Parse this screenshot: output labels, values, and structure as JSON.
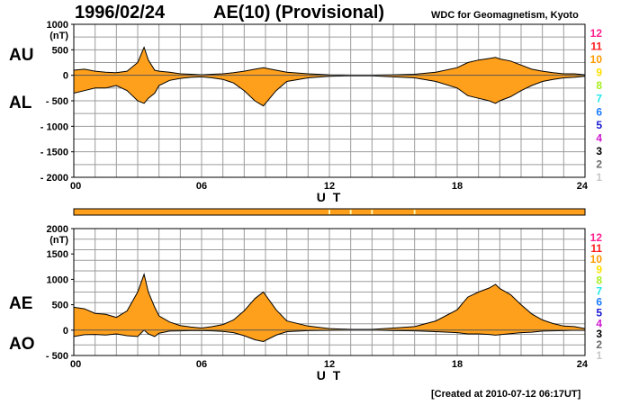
{
  "header": {
    "date": "1996/02/24",
    "title": "AE(10) (Provisional)",
    "source": "WDC for Geomagnetism, Kyoto"
  },
  "footer": {
    "created": "[Created at 2010-07-12 06:17UT]"
  },
  "colors": {
    "fill": "#ffa01c",
    "grid": "#9c9c9c",
    "flag_bar": "#ffa01c",
    "flag_marks": "#fff4b0"
  },
  "station_legend": [
    {
      "label": "12",
      "color": "#ff1f8f"
    },
    {
      "label": "11",
      "color": "#ff1c1c"
    },
    {
      "label": "10",
      "color": "#ff9a00"
    },
    {
      "label": "9",
      "color": "#ffe000"
    },
    {
      "label": "8",
      "color": "#a8ee22"
    },
    {
      "label": "7",
      "color": "#22e6e6"
    },
    {
      "label": "6",
      "color": "#1e7cff"
    },
    {
      "label": "5",
      "color": "#1a1ad0"
    },
    {
      "label": "4",
      "color": "#d01ad0"
    },
    {
      "label": "3",
      "color": "#000000"
    },
    {
      "label": "2",
      "color": "#6a6a6a"
    },
    {
      "label": "1",
      "color": "#c8c8c8"
    }
  ],
  "flag_marks_hours": [
    12,
    13,
    14,
    16
  ],
  "chart_data": [
    {
      "type": "area",
      "title": "",
      "series": [
        {
          "name": "AU",
          "x": [
            0,
            0.5,
            1,
            1.5,
            2,
            2.5,
            3,
            3.3,
            3.5,
            3.8,
            4,
            4.5,
            5,
            5.5,
            6,
            6.5,
            7,
            7.5,
            8,
            8.5,
            8.9,
            9.5,
            10,
            11,
            12,
            13,
            14,
            15,
            16,
            17,
            18,
            18.5,
            19,
            19.5,
            19.8,
            20,
            20.5,
            21,
            21.5,
            22,
            22.5,
            23,
            23.5,
            24
          ],
          "values": [
            100,
            120,
            80,
            60,
            50,
            80,
            250,
            550,
            300,
            100,
            80,
            60,
            30,
            20,
            10,
            20,
            30,
            50,
            80,
            120,
            150,
            100,
            60,
            30,
            10,
            5,
            5,
            10,
            20,
            60,
            150,
            250,
            300,
            330,
            350,
            320,
            280,
            200,
            120,
            80,
            50,
            30,
            30,
            10
          ]
        },
        {
          "name": "AL",
          "x": [
            0,
            0.5,
            1,
            1.5,
            2,
            2.5,
            3,
            3.3,
            3.5,
            3.8,
            4,
            4.5,
            5,
            5.5,
            6,
            6.5,
            7,
            7.5,
            8,
            8.5,
            8.9,
            9.5,
            10,
            11,
            12,
            13,
            14,
            15,
            16,
            17,
            18,
            18.5,
            19,
            19.5,
            19.8,
            20,
            20.5,
            21,
            21.5,
            22,
            22.5,
            23,
            23.5,
            24
          ],
          "values": [
            -350,
            -300,
            -250,
            -250,
            -200,
            -300,
            -500,
            -550,
            -450,
            -350,
            -200,
            -100,
            -60,
            -40,
            -30,
            -50,
            -80,
            -150,
            -300,
            -500,
            -600,
            -300,
            -120,
            -50,
            -20,
            -10,
            -10,
            -30,
            -50,
            -120,
            -250,
            -400,
            -450,
            -500,
            -550,
            -500,
            -420,
            -300,
            -200,
            -120,
            -80,
            -50,
            -40,
            -20
          ]
        }
      ],
      "xlabel": "U T",
      "ylabel": "(nT)",
      "ylim": [
        -2000,
        1000
      ],
      "yticks": [
        1000,
        500,
        0,
        -500,
        -1000,
        -1500,
        -2000
      ],
      "ytick_labels": [
        "1000",
        "500",
        "0",
        "- 500",
        "- 1000",
        "- 1500",
        "- 2000"
      ],
      "xlim": [
        0,
        24
      ],
      "xticks": [
        0,
        6,
        12,
        18,
        24
      ],
      "xtick_labels": [
        "00",
        "06",
        "12",
        "18",
        "24"
      ],
      "grid": true,
      "index_labels": [
        "AU",
        "AL"
      ]
    },
    {
      "type": "area",
      "title": "",
      "series": [
        {
          "name": "AE",
          "x": [
            0,
            0.5,
            1,
            1.5,
            2,
            2.5,
            3,
            3.3,
            3.5,
            3.8,
            4,
            4.5,
            5,
            5.5,
            6,
            6.5,
            7,
            7.5,
            8,
            8.5,
            8.9,
            9.5,
            10,
            11,
            12,
            13,
            14,
            15,
            16,
            17,
            18,
            18.5,
            19,
            19.5,
            19.8,
            20,
            20.5,
            21,
            21.5,
            22,
            22.5,
            23,
            23.5,
            24
          ],
          "values": [
            450,
            420,
            330,
            310,
            250,
            380,
            750,
            1100,
            750,
            450,
            280,
            160,
            90,
            60,
            40,
            70,
            110,
            200,
            380,
            620,
            750,
            400,
            180,
            80,
            30,
            15,
            15,
            40,
            70,
            180,
            400,
            650,
            750,
            830,
            900,
            820,
            700,
            500,
            320,
            200,
            130,
            80,
            70,
            30
          ]
        },
        {
          "name": "AO",
          "x": [
            0,
            0.5,
            1,
            1.5,
            2,
            2.5,
            3,
            3.3,
            3.5,
            3.8,
            4,
            4.5,
            5,
            5.5,
            6,
            6.5,
            7,
            7.5,
            8,
            8.5,
            8.9,
            9.5,
            10,
            11,
            12,
            13,
            14,
            15,
            16,
            17,
            18,
            18.5,
            19,
            19.5,
            19.8,
            20,
            20.5,
            21,
            21.5,
            22,
            22.5,
            23,
            23.5,
            24
          ],
          "values": [
            -125,
            -90,
            -85,
            -95,
            -75,
            -110,
            -125,
            0,
            -75,
            -125,
            -60,
            -20,
            -15,
            -10,
            -10,
            -15,
            -25,
            -50,
            -110,
            -190,
            -225,
            -100,
            -30,
            -10,
            -5,
            -2,
            -2,
            -10,
            -15,
            -30,
            -50,
            -75,
            -75,
            -85,
            -100,
            -90,
            -70,
            -50,
            -40,
            -20,
            -15,
            -10,
            -5,
            -5
          ]
        }
      ],
      "xlabel": "U T",
      "ylabel": "(nT)",
      "ylim": [
        -500,
        2000
      ],
      "yticks": [
        2000,
        1500,
        1000,
        500,
        0,
        -500
      ],
      "ytick_labels": [
        "2000",
        "1500",
        "1000",
        "500",
        "0",
        "- 500"
      ],
      "xlim": [
        0,
        24
      ],
      "xticks": [
        0,
        6,
        12,
        18,
        24
      ],
      "xtick_labels": [
        "00",
        "06",
        "12",
        "18",
        "24"
      ],
      "grid": true,
      "index_labels": [
        "AE",
        "AO"
      ]
    }
  ]
}
